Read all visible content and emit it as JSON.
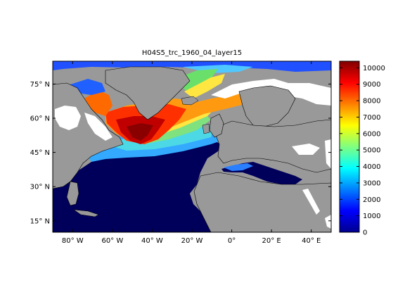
{
  "title": "H04S5_trc_1960_04_layer15",
  "colors": {
    "land": "#999999",
    "nodata": "#ffffff",
    "coast": "#000000",
    "colormap": "jet"
  },
  "map": {
    "lon_range": [
      -90,
      50
    ],
    "lat_range": [
      10,
      85
    ],
    "lon_ticks": [
      {
        "value": -80,
        "label": "80° W"
      },
      {
        "value": -60,
        "label": "60° W"
      },
      {
        "value": -40,
        "label": "40° W"
      },
      {
        "value": -20,
        "label": "20° W"
      },
      {
        "value": 0,
        "label": "0°"
      },
      {
        "value": 20,
        "label": "20° E"
      },
      {
        "value": 40,
        "label": "40° E"
      }
    ],
    "lat_ticks": [
      {
        "value": 15,
        "label": "15° N"
      },
      {
        "value": 30,
        "label": "30° N"
      },
      {
        "value": 45,
        "label": "45° N"
      },
      {
        "value": 60,
        "label": "60° N"
      },
      {
        "value": 75,
        "label": "75° N"
      }
    ]
  },
  "colorbar": {
    "min": 0,
    "max": 10400,
    "ticks": [
      {
        "value": 0,
        "label": "0"
      },
      {
        "value": 1000,
        "label": "1000"
      },
      {
        "value": 2000,
        "label": "2000"
      },
      {
        "value": 3000,
        "label": "3000"
      },
      {
        "value": 4000,
        "label": "4000"
      },
      {
        "value": 5000,
        "label": "5000"
      },
      {
        "value": 6000,
        "label": "6000"
      },
      {
        "value": 7000,
        "label": "7000"
      },
      {
        "value": 8000,
        "label": "8000"
      },
      {
        "value": 9000,
        "label": "9000"
      },
      {
        "value": 10000,
        "label": "10000"
      }
    ]
  }
}
